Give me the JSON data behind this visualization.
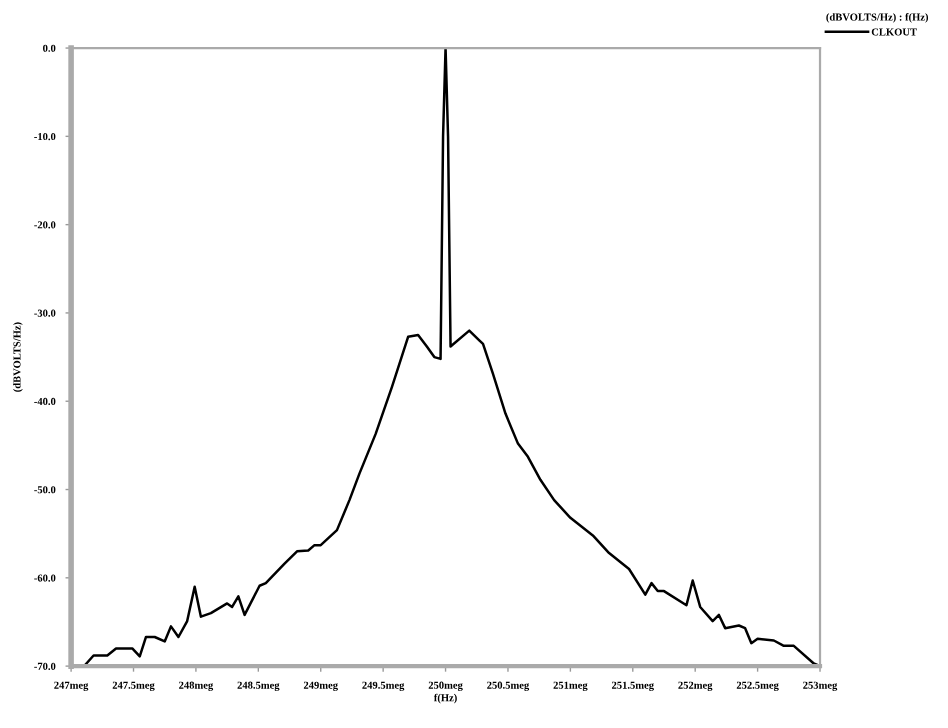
{
  "chart_data": {
    "type": "line",
    "xlabel": "f(Hz)",
    "ylabel": "(dBVOLTS/Hz)",
    "legend_title": "(dBVOLTS/Hz) : f(Hz)",
    "legend": "top right",
    "grid": false,
    "xlim": [
      247,
      253
    ],
    "ylim": [
      -70,
      0
    ],
    "xticks": [
      {
        "value": 247,
        "label": "247meg"
      },
      {
        "value": 247.5,
        "label": "247.5meg"
      },
      {
        "value": 248,
        "label": "248meg"
      },
      {
        "value": 248.5,
        "label": "248.5meg"
      },
      {
        "value": 249,
        "label": "249meg"
      },
      {
        "value": 249.5,
        "label": "249.5meg"
      },
      {
        "value": 250,
        "label": "250meg"
      },
      {
        "value": 250.5,
        "label": "250.5meg"
      },
      {
        "value": 251,
        "label": "251meg"
      },
      {
        "value": 251.5,
        "label": "251.5meg"
      },
      {
        "value": 252,
        "label": "252meg"
      },
      {
        "value": 252.5,
        "label": "252.5meg"
      },
      {
        "value": 253,
        "label": "253meg"
      }
    ],
    "yticks": [
      {
        "value": 0,
        "label": "0.0"
      },
      {
        "value": -10,
        "label": "-10.0"
      },
      {
        "value": -20,
        "label": "-20.0"
      },
      {
        "value": -30,
        "label": "-30.0"
      },
      {
        "value": -40,
        "label": "-40.0"
      },
      {
        "value": -50,
        "label": "-50.0"
      },
      {
        "value": -60,
        "label": "-60.0"
      },
      {
        "value": -70,
        "label": "-70.0"
      }
    ],
    "series": [
      {
        "name": "CLKOUT",
        "color": "#000000",
        "x": [
          247.11,
          247.18,
          247.29,
          247.36,
          247.49,
          247.55,
          247.6,
          247.67,
          247.75,
          247.8,
          247.86,
          247.93,
          247.99,
          248.04,
          248.12,
          248.25,
          248.29,
          248.34,
          248.39,
          248.51,
          248.56,
          248.71,
          248.81,
          248.9,
          248.95,
          249.0,
          249.13,
          249.23,
          249.31,
          249.44,
          249.57,
          249.7,
          249.78,
          249.85,
          249.91,
          249.96,
          249.98,
          250.0,
          250.02,
          250.04,
          250.19,
          250.27,
          250.3,
          250.38,
          250.48,
          250.58,
          250.66,
          250.76,
          250.87,
          251.0,
          251.18,
          251.31,
          251.47,
          251.6,
          251.65,
          251.7,
          251.75,
          251.93,
          251.98,
          252.04,
          252.14,
          252.19,
          252.24,
          252.35,
          252.4,
          252.45,
          252.5,
          252.63,
          252.71,
          252.79,
          252.95,
          253.0
        ],
        "values": [
          -69.9,
          -68.8,
          -68.8,
          -68.0,
          -68.0,
          -68.9,
          -66.7,
          -66.7,
          -67.2,
          -65.5,
          -66.7,
          -64.9,
          -61.0,
          -64.4,
          -64.0,
          -62.9,
          -63.3,
          -62.1,
          -64.2,
          -60.9,
          -60.6,
          -58.4,
          -57.0,
          -56.9,
          -56.3,
          -56.3,
          -54.6,
          -51.2,
          -48.2,
          -43.7,
          -38.4,
          -32.7,
          -32.5,
          -33.8,
          -35.0,
          -35.2,
          -10,
          0,
          -10,
          -33.8,
          -32.0,
          -33.1,
          -33.5,
          -36.9,
          -41.4,
          -44.8,
          -46.3,
          -48.9,
          -51.2,
          -53.2,
          -55.2,
          -57.2,
          -59.0,
          -61.9,
          -60.6,
          -61.5,
          -61.5,
          -63.1,
          -60.3,
          -63.3,
          -64.9,
          -64.2,
          -65.7,
          -65.4,
          -65.7,
          -67.4,
          -66.9,
          -67.1,
          -67.7,
          -67.7,
          -69.7,
          -70.0
        ]
      }
    ]
  }
}
